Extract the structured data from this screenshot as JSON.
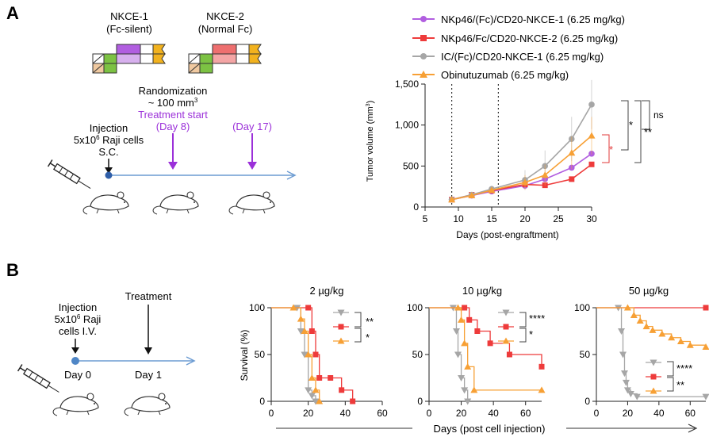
{
  "panel_a": {
    "letter": "A",
    "nkce1_title": "NKCE-1",
    "nkce1_subtitle": "(Fc-silent)",
    "nkce2_title": "NKCE-2",
    "nkce2_subtitle": "(Normal Fc)",
    "randomization_line1": "Randomization",
    "randomization_line2": "~ 100 mm",
    "randomization_sup": "3",
    "treatment_start": "Treatment start",
    "day8": "(Day 8)",
    "day17": "(Day 17)",
    "injection_line1": "Injection",
    "injection_line2_pre": "5x10",
    "injection_line2_sup": "6",
    "injection_line2_post": " Raji cells",
    "injection_line3": "S.C."
  },
  "panel_b": {
    "letter": "B",
    "injection_line1": "Injection",
    "injection_line2_pre": "5x10",
    "injection_line2_sup": "6",
    "injection_line2_post": " Raji",
    "injection_line3": "cells I.V.",
    "treatment": "Treatment",
    "day0": "Day 0",
    "day1": "Day 1",
    "shared_xlabel": "Days (post cell injection)"
  },
  "colors": {
    "nkce1": "#b15ee0",
    "nkce2": "#ee3b3b",
    "ic": "#a6a6a6",
    "obinutuzumab": "#f7a035",
    "timeline": "#6b9bd2",
    "treatment_purple": "#9b30d9",
    "sig_red": "#e23a3a",
    "fc_green": "#7cc243",
    "fc_gold": "#f2b21e"
  },
  "chart_data": [
    {
      "type": "line",
      "ylabel": "Tumor volume (mm",
      "ylabel_sup": "3",
      "ylabel_close": ")",
      "xlabel": "Days (post-engraftment)",
      "xlim": [
        5,
        30
      ],
      "ylim": [
        0,
        1500
      ],
      "xticks": [
        5,
        10,
        15,
        20,
        25,
        30
      ],
      "yticks": [
        0,
        500,
        1000,
        1500
      ],
      "ytick_labels": [
        "0",
        "500",
        "1,000",
        "1,500"
      ],
      "dotted_vlines": [
        9,
        16
      ],
      "series": [
        {
          "name": "NKp46/(Fc)/CD20-NKCE-1 (6.25 mg/kg)",
          "key": "nkce1",
          "marker": "circle",
          "x": [
            9,
            12,
            15,
            20,
            23,
            27,
            30
          ],
          "y": [
            90,
            140,
            190,
            260,
            340,
            480,
            650
          ]
        },
        {
          "name": "NKp46/Fc/CD20-NKCE-2 (6.25 mg/kg)",
          "key": "nkce2",
          "marker": "square",
          "x": [
            9,
            12,
            15,
            20,
            23,
            27,
            30
          ],
          "y": [
            90,
            150,
            200,
            275,
            265,
            340,
            520
          ]
        },
        {
          "name": "IC/(Fc)/CD20-NKCE-1 (6.25 mg/kg)",
          "key": "ic",
          "marker": "circle",
          "x": [
            9,
            12,
            15,
            20,
            23,
            27,
            30
          ],
          "y": [
            90,
            150,
            220,
            330,
            500,
            830,
            1250
          ]
        },
        {
          "name": "Obinutuzumab (6.25 mg/kg)",
          "key": "obinutuzumab",
          "marker": "triangle",
          "x": [
            9,
            12,
            15,
            20,
            23,
            27,
            30
          ],
          "y": [
            90,
            140,
            205,
            300,
            390,
            660,
            870
          ]
        }
      ],
      "significance": [
        "ns",
        "*",
        "**",
        "*"
      ]
    },
    {
      "type": "line",
      "title": "2 µg/kg",
      "ylabel": "Survival (%)",
      "xlim": [
        0,
        60
      ],
      "ylim": [
        0,
        100
      ],
      "xticks": [
        0,
        20,
        40,
        60
      ],
      "yticks": [
        0,
        50,
        100
      ],
      "significance": [
        "**",
        "*"
      ],
      "series": [
        {
          "key": "ic",
          "marker": "triangle-down",
          "x": [
            0,
            14,
            16,
            18,
            20,
            22,
            24
          ],
          "y": [
            100,
            100,
            75,
            50,
            12,
            6,
            0
          ]
        },
        {
          "key": "nkce2",
          "marker": "square",
          "x": [
            0,
            20,
            22,
            24,
            26,
            32,
            38,
            44
          ],
          "y": [
            100,
            100,
            75,
            50,
            25,
            25,
            12,
            0
          ]
        },
        {
          "key": "obinutuzumab",
          "marker": "triangle",
          "x": [
            0,
            12,
            16,
            18,
            20,
            22,
            24,
            26
          ],
          "y": [
            100,
            100,
            88,
            75,
            50,
            25,
            12,
            0
          ]
        }
      ]
    },
    {
      "type": "line",
      "title": "10 µg/kg",
      "xlim": [
        0,
        70
      ],
      "ylim": [
        0,
        100
      ],
      "xticks": [
        0,
        20,
        40,
        60
      ],
      "yticks": [
        0,
        50,
        100
      ],
      "significance": [
        "****",
        "*"
      ],
      "series": [
        {
          "key": "ic",
          "marker": "triangle-down",
          "x": [
            0,
            15,
            17,
            18,
            20,
            22,
            24
          ],
          "y": [
            100,
            100,
            75,
            50,
            25,
            12,
            0
          ]
        },
        {
          "key": "nkce2",
          "marker": "square",
          "x": [
            0,
            22,
            25,
            30,
            38,
            50,
            70
          ],
          "y": [
            100,
            100,
            87,
            75,
            62,
            50,
            37
          ]
        },
        {
          "key": "obinutuzumab",
          "marker": "triangle",
          "x": [
            0,
            18,
            20,
            22,
            24,
            28,
            70
          ],
          "y": [
            100,
            100,
            87,
            62,
            37,
            12,
            12
          ]
        }
      ]
    },
    {
      "type": "line",
      "title": "50 µg/kg",
      "xlim": [
        0,
        70
      ],
      "ylim": [
        0,
        100
      ],
      "xticks": [
        0,
        20,
        40,
        60
      ],
      "yticks": [
        0,
        50,
        100
      ],
      "significance": [
        "****",
        "**"
      ],
      "series": [
        {
          "key": "ic",
          "marker": "triangle-down",
          "x": [
            0,
            14,
            16,
            17,
            18,
            19,
            20,
            22,
            26,
            70
          ],
          "y": [
            100,
            100,
            75,
            50,
            30,
            20,
            12,
            8,
            5,
            5
          ]
        },
        {
          "key": "nkce2",
          "marker": "square",
          "x": [
            0,
            70
          ],
          "y": [
            100,
            100
          ]
        },
        {
          "key": "obinutuzumab",
          "marker": "triangle",
          "x": [
            0,
            20,
            24,
            28,
            32,
            36,
            42,
            48,
            54,
            60,
            70
          ],
          "y": [
            100,
            100,
            92,
            86,
            80,
            76,
            72,
            68,
            64,
            60,
            58
          ]
        }
      ]
    }
  ]
}
